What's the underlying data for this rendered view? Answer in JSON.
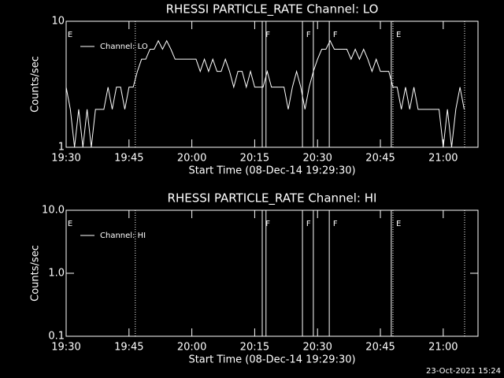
{
  "chart_data": [
    {
      "type": "line",
      "title": "RHESSI PARTICLE_RATE Channel: LO",
      "xlabel": "Start Time (08-Dec-14 19:29:30)",
      "ylabel": "Counts/sec",
      "log_y": true,
      "ylim": [
        1,
        10
      ],
      "yticks": [
        1,
        10
      ],
      "xlim": [
        0,
        98.3
      ],
      "xticks": [
        {
          "value": 0,
          "label": "19:30"
        },
        {
          "value": 15,
          "label": "19:45"
        },
        {
          "value": 30,
          "label": "20:00"
        },
        {
          "value": 45,
          "label": "20:15"
        },
        {
          "value": 60,
          "label": "20:30"
        },
        {
          "value": 75,
          "label": "20:45"
        },
        {
          "value": 90,
          "label": "21:00"
        }
      ],
      "legend": "upper left",
      "series": [
        {
          "name": "Channel: LO",
          "color": "#ffffff",
          "x": [
            0,
            1,
            2,
            3,
            4,
            5,
            6,
            7,
            8,
            9,
            10,
            11,
            12,
            13,
            14,
            15,
            16,
            17,
            18,
            19,
            20,
            21,
            22,
            23,
            24,
            25,
            26,
            27,
            28,
            29,
            30,
            31,
            32,
            33,
            34,
            35,
            36,
            37,
            38,
            39,
            40,
            41,
            42,
            43,
            44,
            45,
            46,
            47,
            48,
            49,
            50,
            51,
            52,
            53,
            54,
            55,
            56,
            57,
            58,
            59,
            60,
            61,
            62,
            63,
            64,
            65,
            66,
            67,
            68,
            69,
            70,
            71,
            72,
            73,
            74,
            75,
            76,
            77,
            78,
            79,
            80,
            81,
            82,
            83,
            84,
            85,
            86,
            87,
            88,
            89,
            90,
            91,
            92,
            93,
            94,
            95
          ],
          "values": [
            3,
            2,
            1,
            2,
            1,
            2,
            1,
            2,
            2,
            2,
            3,
            2,
            3,
            3,
            2,
            3,
            3,
            4,
            5,
            5,
            6,
            6,
            7,
            6,
            7,
            6,
            5,
            5,
            5,
            5,
            5,
            5,
            4,
            5,
            4,
            5,
            4,
            4,
            5,
            4,
            3,
            4,
            4,
            3,
            4,
            3,
            3,
            3,
            4,
            3,
            3,
            3,
            3,
            2,
            3,
            4,
            3,
            2,
            3,
            4,
            5,
            6,
            6,
            7,
            6,
            6,
            6,
            6,
            5,
            6,
            5,
            6,
            5,
            4,
            5,
            4,
            4,
            4,
            3,
            3,
            2,
            3,
            2,
            3,
            2,
            2,
            2,
            2,
            2,
            2,
            1,
            2,
            1,
            2,
            3,
            2
          ]
        }
      ],
      "vlines": [
        {
          "x": 16.5,
          "style": "dotted"
        },
        {
          "x": 46.8,
          "style": "solid"
        },
        {
          "x": 47.7,
          "style": "solid"
        },
        {
          "x": 56.4,
          "style": "solid"
        },
        {
          "x": 59.0,
          "style": "solid"
        },
        {
          "x": 62.8,
          "style": "solid"
        },
        {
          "x": 77.6,
          "style": "solid"
        },
        {
          "x": 78.0,
          "style": "dotted"
        },
        {
          "x": 95.1,
          "style": "dotted"
        }
      ],
      "annotations": [
        {
          "text": "E",
          "x": 0
        },
        {
          "text": "F",
          "x": 47.2
        },
        {
          "text": "F",
          "x": 56.9
        },
        {
          "text": "F",
          "x": 63.3
        },
        {
          "text": "E",
          "x": 78.4
        }
      ]
    },
    {
      "type": "line",
      "title": "RHESSI PARTICLE_RATE Channel: HI",
      "xlabel": "Start Time (08-Dec-14 19:29:30)",
      "ylabel": "Counts/sec",
      "log_y": true,
      "ylim": [
        0.1,
        10
      ],
      "yticks": [
        {
          "value": 0.1,
          "label": "0.1"
        },
        {
          "value": 1,
          "label": "1.0"
        },
        {
          "value": 10,
          "label": "10.0"
        }
      ],
      "xlim": [
        0,
        98.3
      ],
      "xticks": [
        {
          "value": 0,
          "label": "19:30"
        },
        {
          "value": 15,
          "label": "19:45"
        },
        {
          "value": 30,
          "label": "20:00"
        },
        {
          "value": 45,
          "label": "20:15"
        },
        {
          "value": 60,
          "label": "20:30"
        },
        {
          "value": 75,
          "label": "20:45"
        },
        {
          "value": 90,
          "label": "21:00"
        }
      ],
      "legend": "upper left",
      "series": [
        {
          "name": "Channel: HI",
          "color": "#ffffff"
        }
      ],
      "vlines": [
        {
          "x": 16.5,
          "style": "dotted"
        },
        {
          "x": 46.8,
          "style": "solid"
        },
        {
          "x": 47.7,
          "style": "solid"
        },
        {
          "x": 56.4,
          "style": "solid"
        },
        {
          "x": 59.0,
          "style": "solid"
        },
        {
          "x": 62.8,
          "style": "solid"
        },
        {
          "x": 77.6,
          "style": "solid"
        },
        {
          "x": 78.0,
          "style": "dotted"
        },
        {
          "x": 95.1,
          "style": "dotted"
        }
      ],
      "annotations": [
        {
          "text": "E",
          "x": 0
        },
        {
          "text": "F",
          "x": 47.2
        },
        {
          "text": "F",
          "x": 56.9
        },
        {
          "text": "F",
          "x": 63.3
        },
        {
          "text": "E",
          "x": 78.4
        }
      ]
    }
  ],
  "footer": "23-Oct-2021 15:24"
}
